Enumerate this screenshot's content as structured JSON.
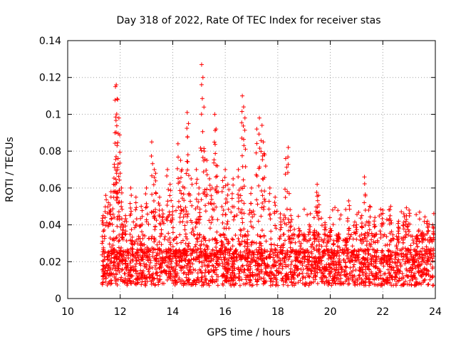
{
  "chart_data": {
    "type": "scatter",
    "title": "Day 318 of 2022, Rate Of TEC Index for receiver stas",
    "xlabel": "GPS time / hours",
    "ylabel": "ROTI / TECUs",
    "xlim": [
      10,
      24
    ],
    "ylim": [
      0,
      0.14
    ],
    "xticks": [
      "10",
      "12",
      "14",
      "16",
      "18",
      "20",
      "22",
      "24"
    ],
    "yticks": [
      "0",
      "0.02",
      "0.04",
      "0.06",
      "0.08",
      "0.1",
      "0.12",
      "0.14"
    ],
    "grid": true,
    "marker": "plus",
    "color": "#ff0000",
    "series": [
      {
        "name": "ROTI",
        "x": [
          11.35,
          11.45,
          11.55,
          11.65,
          11.75,
          11.82,
          11.85,
          11.9,
          11.95,
          12.0,
          12.05,
          12.1,
          11.8,
          11.88,
          11.92,
          12.2,
          12.4,
          12.6,
          12.8,
          13.0,
          13.2,
          13.3,
          13.35,
          13.5,
          13.6,
          13.8,
          13.9,
          14.0,
          14.2,
          14.3,
          14.35,
          14.45,
          14.55,
          14.6,
          14.7,
          14.9,
          15.0,
          15.1,
          15.15,
          15.2,
          15.3,
          15.4,
          15.5,
          15.6,
          15.65,
          15.7,
          15.9,
          16.0,
          16.1,
          16.3,
          16.5,
          16.6,
          16.65,
          16.7,
          16.75,
          17.0,
          17.2,
          17.3,
          17.4,
          17.45,
          17.5,
          17.7,
          17.9,
          18.1,
          18.3,
          18.4,
          18.5,
          18.8,
          19.0,
          19.2,
          19.4,
          19.5,
          19.55,
          19.8,
          20.0,
          20.3,
          20.6,
          20.7,
          21.0,
          21.2,
          21.3,
          21.5,
          21.7,
          22.0,
          22.3,
          22.6,
          22.8,
          22.9,
          23.0,
          23.3,
          23.5,
          23.7,
          23.9
        ],
        "y": [
          0.045,
          0.056,
          0.052,
          0.058,
          0.062,
          0.115,
          0.116,
          0.108,
          0.098,
          0.068,
          0.06,
          0.04,
          0.09,
          0.083,
          0.076,
          0.045,
          0.06,
          0.055,
          0.05,
          0.06,
          0.085,
          0.07,
          0.068,
          0.055,
          0.048,
          0.07,
          0.062,
          0.05,
          0.084,
          0.075,
          0.07,
          0.06,
          0.101,
          0.095,
          0.065,
          0.07,
          0.06,
          0.127,
          0.12,
          0.08,
          0.075,
          0.065,
          0.06,
          0.1,
          0.092,
          0.072,
          0.064,
          0.07,
          0.062,
          0.065,
          0.07,
          0.06,
          0.11,
          0.104,
          0.098,
          0.06,
          0.092,
          0.098,
          0.094,
          0.085,
          0.078,
          0.06,
          0.055,
          0.046,
          0.076,
          0.082,
          0.045,
          0.038,
          0.035,
          0.04,
          0.037,
          0.062,
          0.056,
          0.04,
          0.038,
          0.034,
          0.032,
          0.053,
          0.04,
          0.045,
          0.066,
          0.05,
          0.044,
          0.048,
          0.05,
          0.042,
          0.046,
          0.045,
          0.048,
          0.034,
          0.036,
          0.042,
          0.04
        ]
      }
    ]
  }
}
